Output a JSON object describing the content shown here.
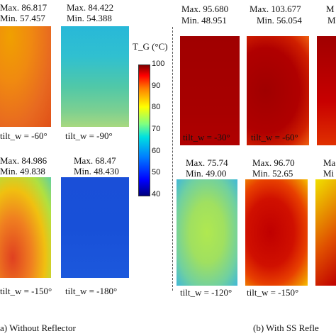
{
  "chart_data": {
    "type": "heatmap",
    "colorbar": {
      "title": "T_G (°C)",
      "min": 40,
      "max": 100,
      "ticks": [
        "100",
        "90",
        "80",
        "70",
        "60",
        "50",
        "40"
      ]
    },
    "groups": [
      {
        "caption": "a)   Without Reflector",
        "panels": [
          {
            "max_label": "Max. 86.817",
            "min_label": "Min. 57.457",
            "tilt": "tilt_w = -60°",
            "max": 86.817,
            "min": 57.457,
            "style": "warm"
          },
          {
            "max_label": "Max. 84.422",
            "min_label": "Min. 54.388",
            "tilt": "tilt_w = -90°",
            "max": 84.422,
            "min": 54.388,
            "style": "cool"
          },
          {
            "max_label": "Max. 84.986",
            "min_label": "Min. 49.838",
            "tilt": "tilt_w = -150°",
            "max": 84.986,
            "min": 49.838,
            "style": "mixed"
          },
          {
            "max_label": "Max. 68.47",
            "min_label": "Min. 48.430",
            "tilt": "tilt_w = -180°",
            "max": 68.47,
            "min": 48.43,
            "style": "blue"
          }
        ]
      },
      {
        "caption": "(b) With SS Refle",
        "panels": [
          {
            "max_label": "Max. 95.680",
            "min_label": "Min. 48.951",
            "tilt": "tilt_w = -30°",
            "max": 95.68,
            "min": 48.951,
            "style": "darkred"
          },
          {
            "max_label": "Max. 103.677",
            "min_label": "Min. 56.054",
            "tilt": "tilt_w = -60°",
            "max": 103.677,
            "min": 56.054,
            "style": "darkred2"
          },
          {
            "max_label": "Max. 75.74",
            "min_label": "Min. 49.00",
            "tilt": "tilt_w = -120°",
            "max": 75.74,
            "min": 49.0,
            "style": "green"
          },
          {
            "max_label": "Max. 96.70",
            "min_label": "Min. 52.65",
            "tilt": "tilt_w = -150°",
            "max": 96.7,
            "min": 52.65,
            "style": "red"
          }
        ]
      }
    ],
    "cut_off_labels": [
      "M",
      "M",
      "Ma",
      "Mi"
    ]
  }
}
